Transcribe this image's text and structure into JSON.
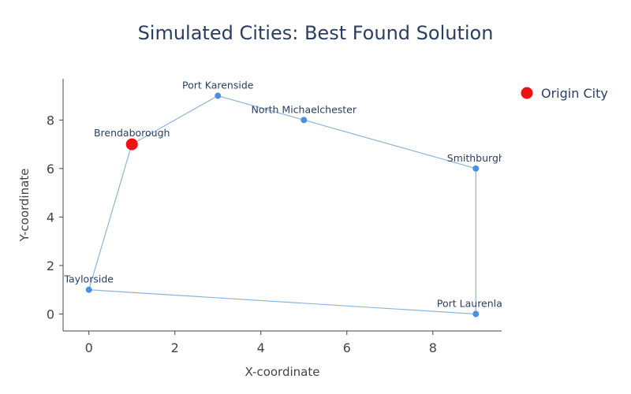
{
  "chart_data": {
    "type": "scatter",
    "title": "Simulated Cities: Best Found Solution",
    "xlabel": "X-coordinate",
    "ylabel": "Y-coordinate",
    "xlim": [
      -0.6,
      9.6
    ],
    "ylim": [
      -0.7,
      9.7
    ],
    "xticks": [
      0,
      2,
      4,
      6,
      8
    ],
    "yticks": [
      0,
      2,
      4,
      6,
      8
    ],
    "grid": false,
    "legend_position": "top-right",
    "colors": {
      "route": "#8fb4d8",
      "city": "#4a90e2",
      "origin": "#ee1111"
    },
    "cities": [
      {
        "name": "Brendaborough",
        "x": 1,
        "y": 7,
        "origin": true
      },
      {
        "name": "Port Karenside",
        "x": 3,
        "y": 9
      },
      {
        "name": "North Michaelchester",
        "x": 5,
        "y": 8
      },
      {
        "name": "Smithburgh",
        "x": 9,
        "y": 6
      },
      {
        "name": "Port Laurenland",
        "x": 9,
        "y": 0
      },
      {
        "name": "Taylorside",
        "x": 0,
        "y": 1
      }
    ],
    "route": [
      {
        "x": 1,
        "y": 7
      },
      {
        "x": 3,
        "y": 9
      },
      {
        "x": 5,
        "y": 8
      },
      {
        "x": 9,
        "y": 6
      },
      {
        "x": 9,
        "y": 0
      },
      {
        "x": 0,
        "y": 1
      },
      {
        "x": 1,
        "y": 7
      }
    ],
    "legend": [
      {
        "name": "Origin City"
      }
    ]
  }
}
